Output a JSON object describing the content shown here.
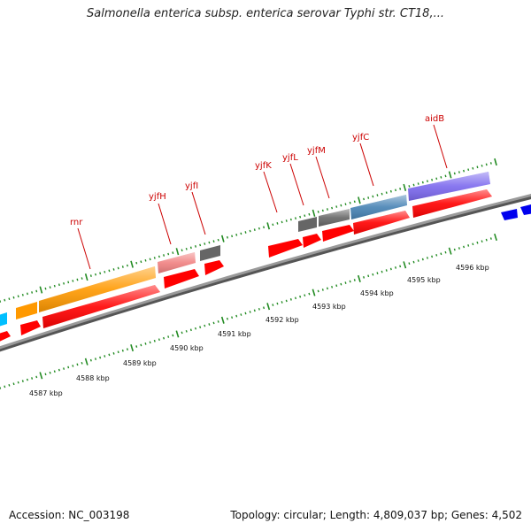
{
  "title": "Salmonella enterica subsp. enterica serovar Typhi str. CT18,...",
  "footer": {
    "accession": "Accession: NC_003198",
    "topology": "Topology: circular; Length: 4,809,037 bp; Genes: 4,502"
  },
  "scale": {
    "unit": "kbp",
    "ticks": [
      "4587 kbp",
      "4588 kbp",
      "4589 kbp",
      "4590 kbp",
      "4591 kbp",
      "4592 kbp",
      "4593 kbp",
      "4594 kbp",
      "4595 kbp",
      "4596 kbp"
    ]
  },
  "genes": [
    {
      "label": "rnr",
      "color": "#ff9900"
    },
    {
      "label": "yjfH",
      "color": "#f08080"
    },
    {
      "label": "yjfI",
      "color": "#666666"
    },
    {
      "label": "yjfK",
      "color": "#666666"
    },
    {
      "label": "yjfL",
      "color": "#666666"
    },
    {
      "label": "yjfM",
      "color": "#666666"
    },
    {
      "label": "yjfC",
      "color": "#4682b4"
    },
    {
      "label": "aidB",
      "color": "#7b68ee"
    }
  ],
  "colors": {
    "cds": "#ff0000",
    "backbone": "#808080",
    "tick": "#228b22",
    "label": "#cc0000"
  }
}
